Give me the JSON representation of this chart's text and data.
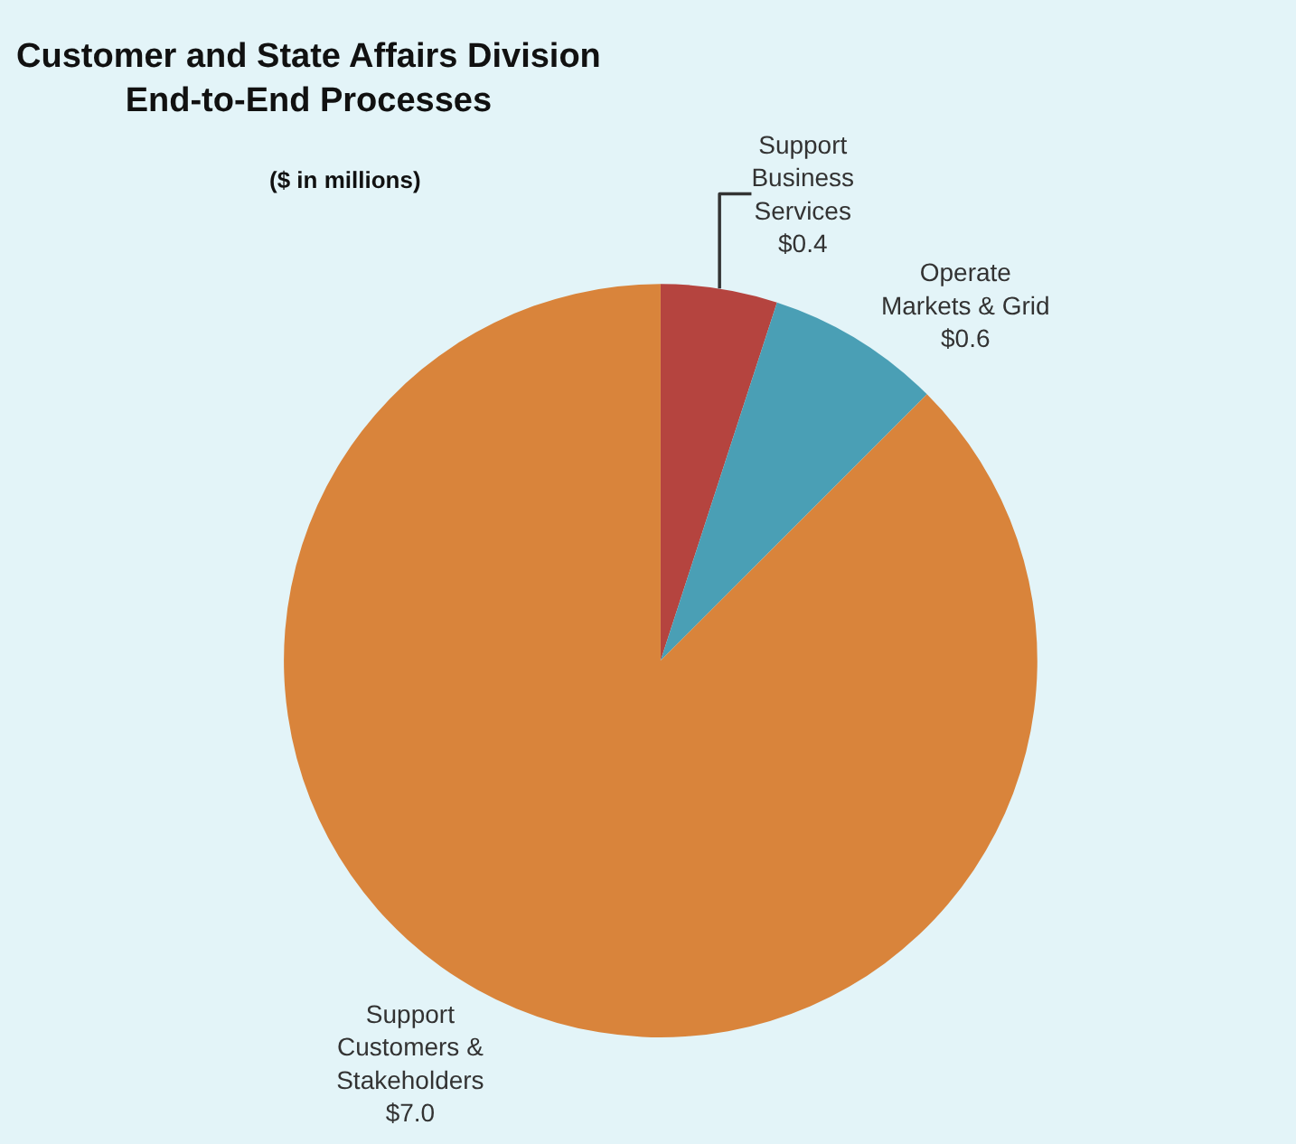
{
  "chart_data": {
    "type": "pie",
    "title": "Customer and State Affairs Division\nEnd-to-End Processes",
    "subtitle": "($ in millions)",
    "categories": [
      "Support\nBusiness\nServices",
      "Operate\nMarkets & Grid",
      "Support\nCustomers &\nStakeholders"
    ],
    "values": [
      0.4,
      0.6,
      7.0
    ],
    "value_labels": [
      "$0.4",
      "$0.6",
      "$7.0"
    ],
    "colors": [
      "#b5443f",
      "#4a9fb5",
      "#d9843b"
    ],
    "legend": false
  }
}
